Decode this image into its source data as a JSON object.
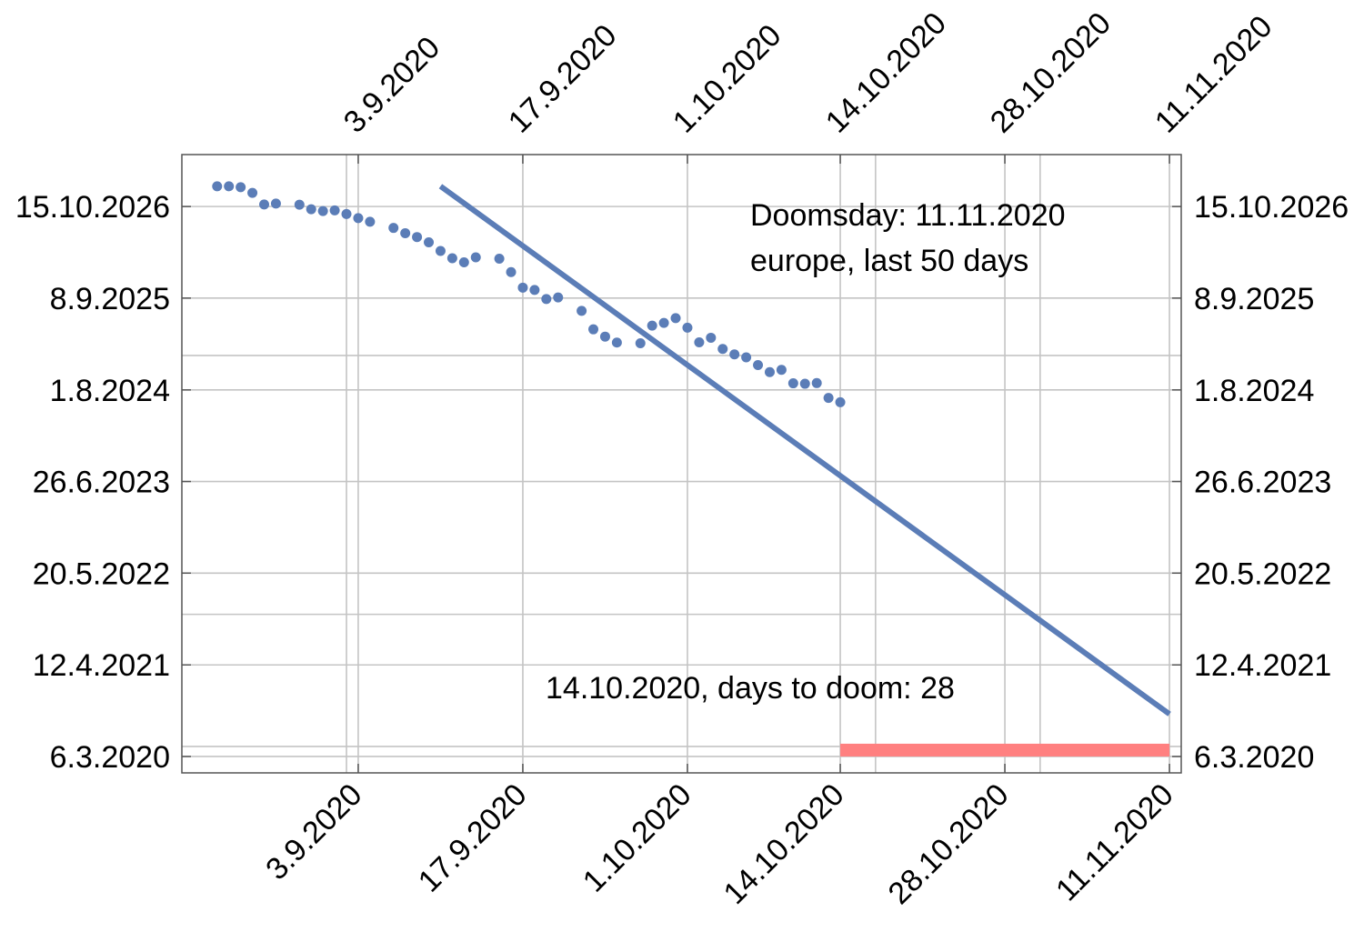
{
  "chart_data": {
    "type": "scatter",
    "x_ticks": [
      "3.9.2020",
      "17.9.2020",
      "1.10.2020",
      "14.10.2020",
      "28.10.2020",
      "11.11.2020"
    ],
    "y_ticks": [
      "15.10.2026",
      "8.9.2025",
      "1.8.2024",
      "26.6.2023",
      "20.5.2022",
      "12.4.2021",
      "6.3.2020"
    ],
    "xlim": [
      "2020-08-19",
      "2020-11-12"
    ],
    "ylim": [
      "2019-12-25",
      "2027-05-31"
    ],
    "grid": true,
    "series": [
      {
        "kind": "points",
        "color": "#5b7db7",
        "points": [
          [
            "2020-08-22",
            "2027-01-12"
          ],
          [
            "2020-08-23",
            "2027-01-12"
          ],
          [
            "2020-08-24",
            "2027-01-08"
          ],
          [
            "2020-08-25",
            "2026-12-14"
          ],
          [
            "2020-08-26",
            "2026-10-24"
          ],
          [
            "2020-08-27",
            "2026-10-28"
          ],
          [
            "2020-08-29",
            "2026-10-23"
          ],
          [
            "2020-08-30",
            "2026-10-03"
          ],
          [
            "2020-08-31",
            "2026-09-25"
          ],
          [
            "2020-09-01",
            "2026-09-28"
          ],
          [
            "2020-09-02",
            "2026-09-12"
          ],
          [
            "2020-09-03",
            "2026-08-25"
          ],
          [
            "2020-09-04",
            "2026-08-09"
          ],
          [
            "2020-09-06",
            "2026-07-13"
          ],
          [
            "2020-09-07",
            "2026-06-20"
          ],
          [
            "2020-09-08",
            "2026-06-03"
          ],
          [
            "2020-09-09",
            "2026-05-11"
          ],
          [
            "2020-09-10",
            "2026-04-03"
          ],
          [
            "2020-09-11",
            "2026-03-02"
          ],
          [
            "2020-09-12",
            "2026-02-12"
          ],
          [
            "2020-09-13",
            "2026-03-06"
          ],
          [
            "2020-09-15",
            "2026-02-28"
          ],
          [
            "2020-09-16",
            "2025-12-31"
          ],
          [
            "2020-09-17",
            "2025-10-24"
          ],
          [
            "2020-09-18",
            "2025-10-14"
          ],
          [
            "2020-09-19",
            "2025-09-04"
          ],
          [
            "2020-09-20",
            "2025-09-11"
          ],
          [
            "2020-09-22",
            "2025-07-14"
          ],
          [
            "2020-09-23",
            "2025-04-24"
          ],
          [
            "2020-09-24",
            "2025-03-23"
          ],
          [
            "2020-09-25",
            "2025-02-25"
          ],
          [
            "2020-09-27",
            "2025-02-22"
          ],
          [
            "2020-09-28",
            "2025-05-10"
          ],
          [
            "2020-09-29",
            "2025-05-22"
          ],
          [
            "2020-09-30",
            "2025-06-12"
          ],
          [
            "2020-10-01",
            "2025-05-01"
          ],
          [
            "2020-10-02",
            "2025-02-26"
          ],
          [
            "2020-10-03",
            "2025-03-18"
          ],
          [
            "2020-10-04",
            "2025-01-28"
          ],
          [
            "2020-10-05",
            "2025-01-04"
          ],
          [
            "2020-10-06",
            "2024-12-22"
          ],
          [
            "2020-10-07",
            "2024-11-18"
          ],
          [
            "2020-10-08",
            "2024-10-18"
          ],
          [
            "2020-10-09",
            "2024-10-28"
          ],
          [
            "2020-10-10",
            "2024-08-30"
          ],
          [
            "2020-10-11",
            "2024-08-28"
          ],
          [
            "2020-10-12",
            "2024-08-31"
          ],
          [
            "2020-10-13",
            "2024-06-27"
          ],
          [
            "2020-10-14",
            "2024-06-08"
          ]
        ]
      },
      {
        "kind": "line",
        "color": "#5b7db7",
        "points": [
          [
            "2020-09-10",
            "2027-01-12"
          ],
          [
            "2020-11-11",
            "2020-09-08"
          ]
        ]
      }
    ],
    "horizontal_lines": [
      "2024-12-30",
      "2021-11-20",
      "2020-04-19"
    ],
    "vertical_lines": [
      "2020-09-02",
      "2020-10-17",
      "2020-10-31"
    ],
    "doom_bar": {
      "color": "#ff8080",
      "x": [
        "2020-10-14",
        "2020-11-11"
      ],
      "y": [
        "2020-03-06",
        "2020-05-01"
      ]
    },
    "annotations": [
      "Doomsday: 11.11.2020",
      "europe, last 50 days",
      "14.10.2020, days to doom: 28"
    ]
  }
}
